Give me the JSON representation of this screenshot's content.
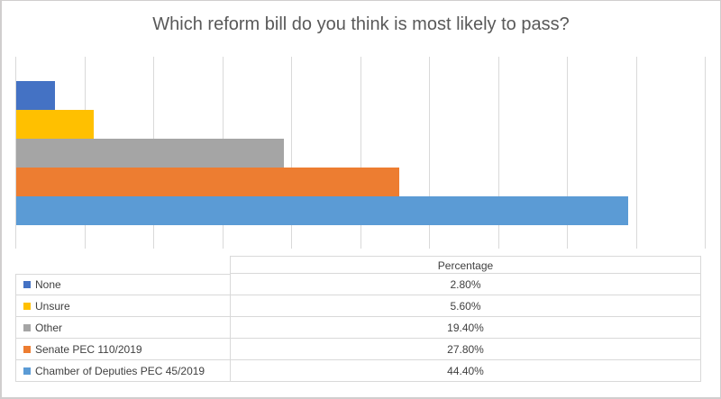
{
  "chart_data": {
    "type": "bar",
    "orientation": "horizontal",
    "title": "Which reform bill do you think is most likely to pass?",
    "categories": [
      "Percentage"
    ],
    "series": [
      {
        "name": "None",
        "color": "#4472C4",
        "values": [
          2.8
        ],
        "label": "2.80%"
      },
      {
        "name": "Unsure",
        "color": "#FFC000",
        "values": [
          5.6
        ],
        "label": "5.60%"
      },
      {
        "name": "Other",
        "color": "#A5A5A5",
        "values": [
          19.4
        ],
        "label": "19.40%"
      },
      {
        "name": "Senate PEC 110/2019",
        "color": "#ED7D31",
        "values": [
          27.8
        ],
        "label": "27.80%"
      },
      {
        "name": "Chamber of Deputies PEC 45/2019",
        "color": "#5B9BD5",
        "values": [
          44.4
        ],
        "label": "44.40%"
      }
    ],
    "xlim": [
      0,
      50
    ],
    "grid": true,
    "gridline_interval": 5,
    "axis_tick_labels_visible": false,
    "legend_position": "data-table-left",
    "data_table": {
      "header": "Percentage",
      "show_legend_keys": true
    },
    "colors": {
      "gridline": "#D9D9D9",
      "table_border": "#D9D9D9",
      "title_text": "#595959",
      "table_text": "#404040",
      "frame_border": "#D0CECE"
    }
  }
}
